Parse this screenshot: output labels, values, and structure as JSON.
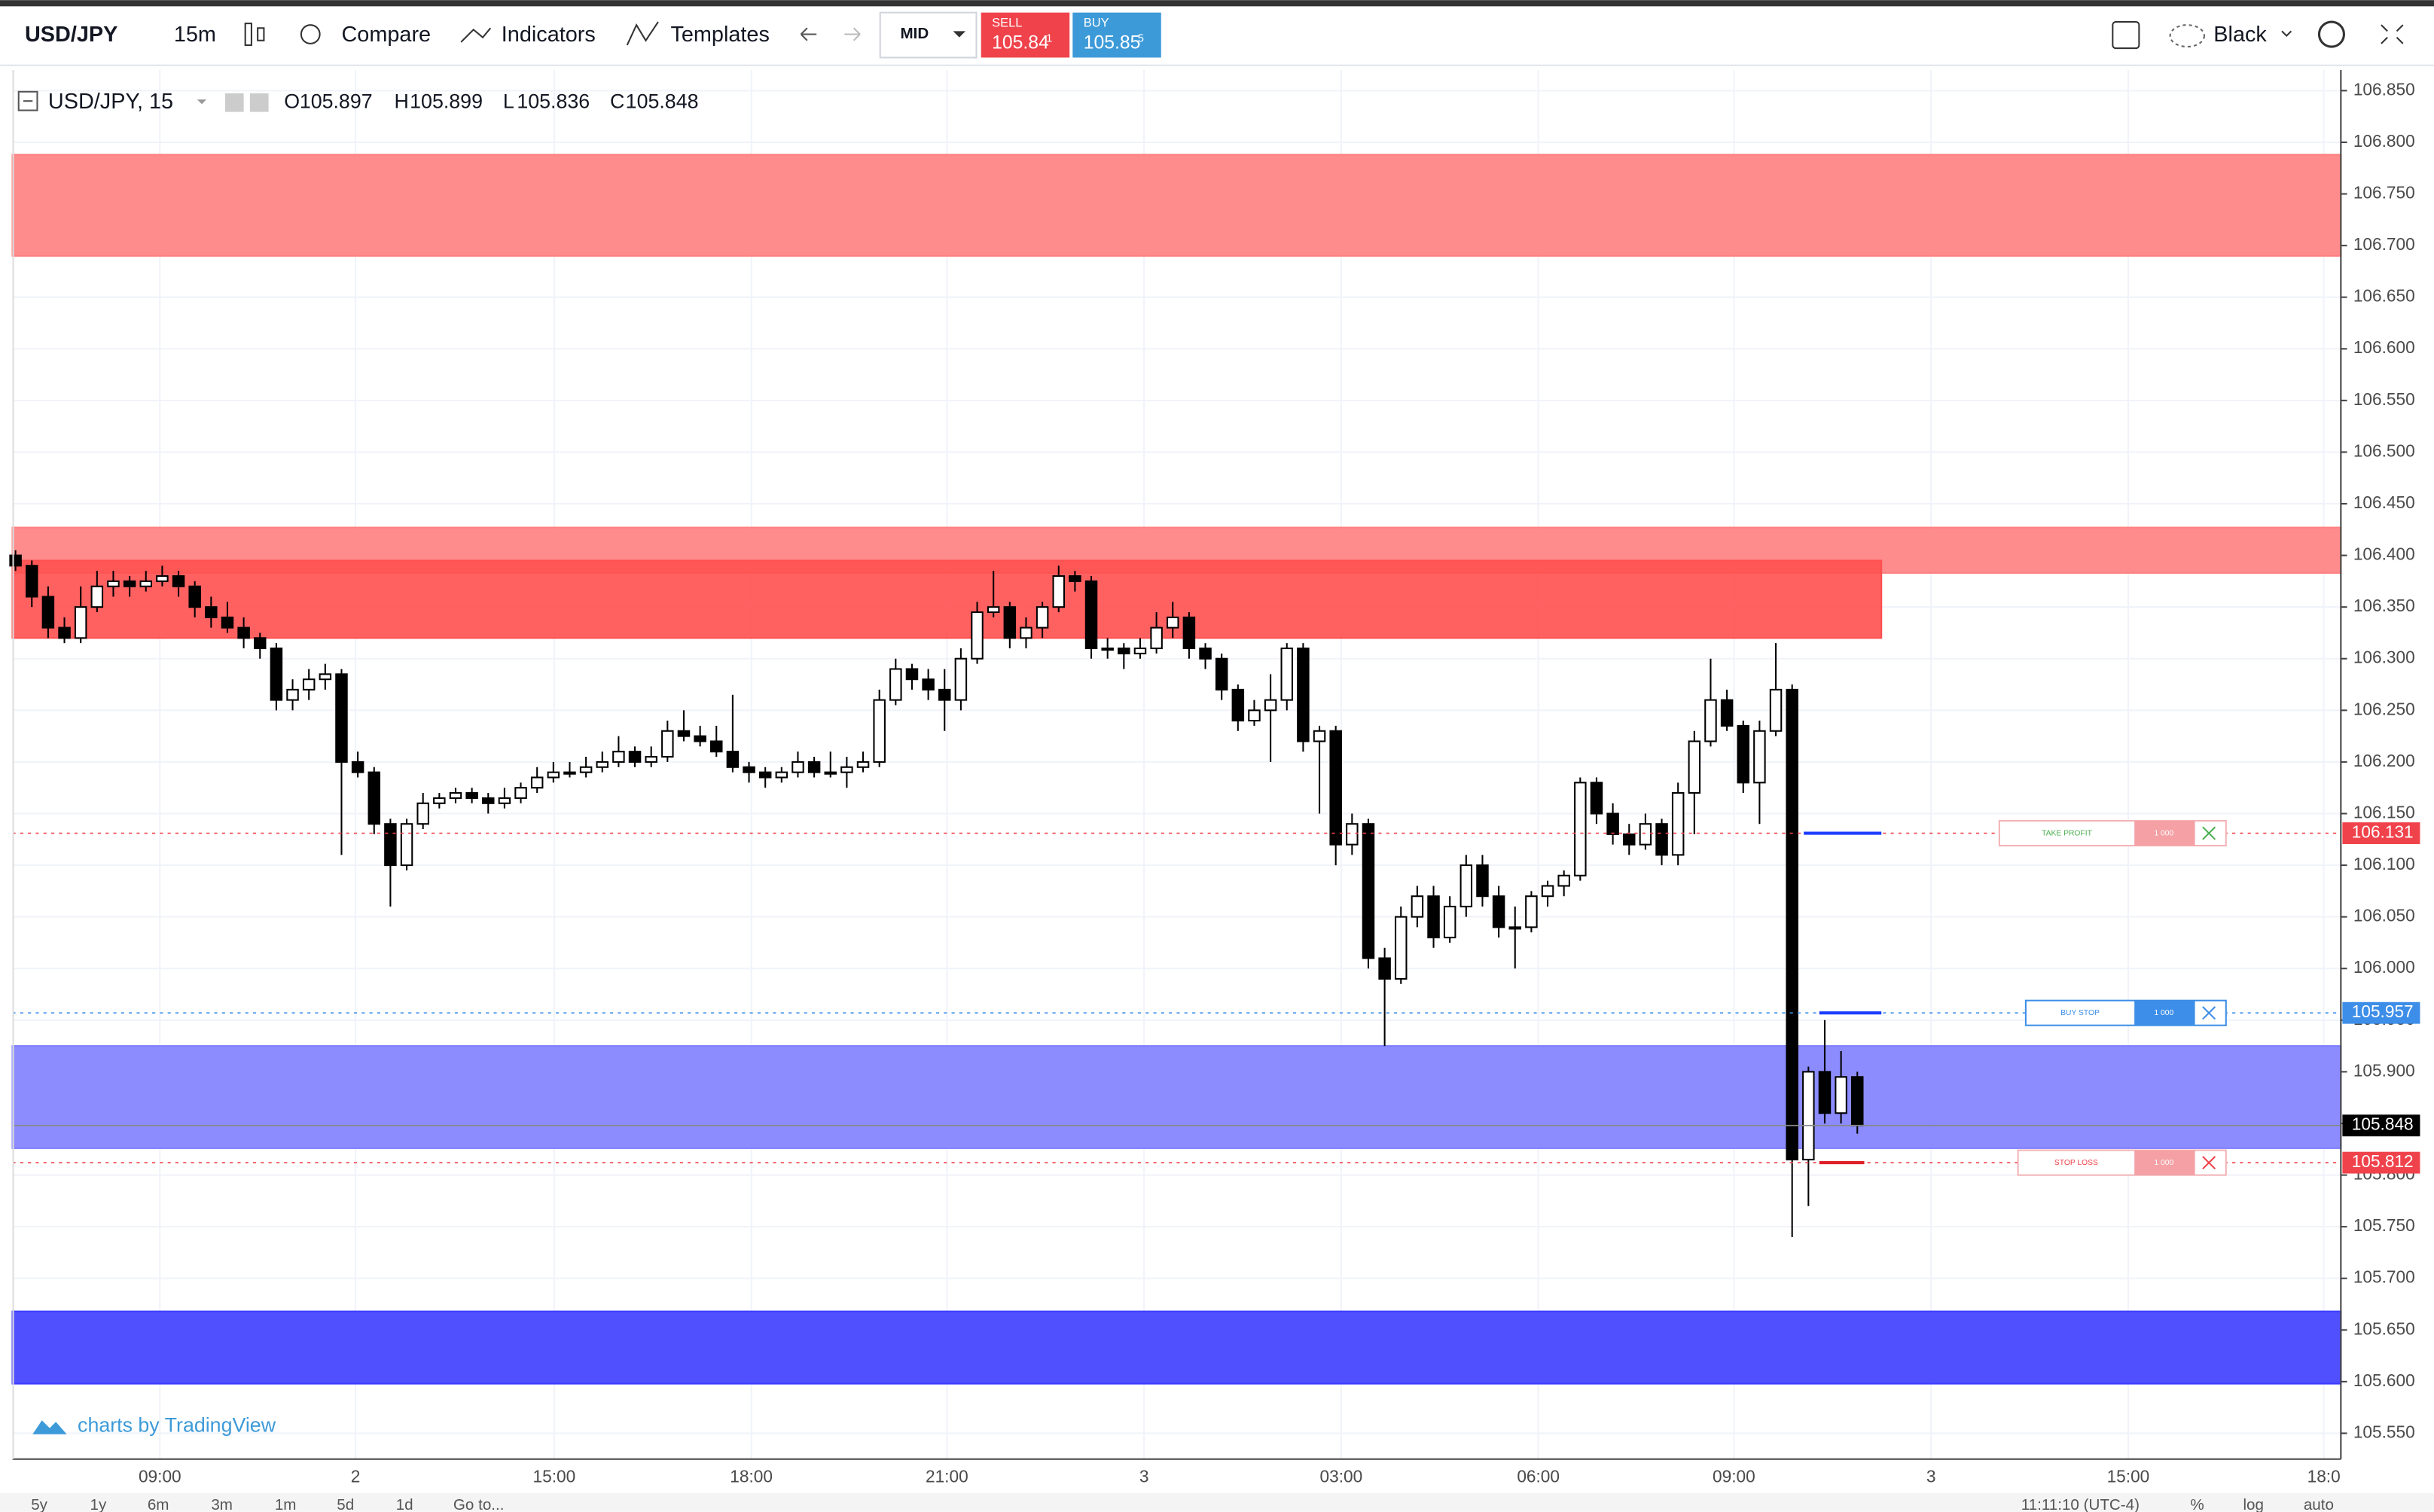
{
  "toolbar": {
    "symbol": "USD/JPY",
    "interval": "15m",
    "compare": "Compare",
    "indicators": "Indicators",
    "templates": "Templates",
    "mid": "MID",
    "sell": "SELL",
    "sell_price": "105.84",
    "sell_pip": "1",
    "buy": "BUY",
    "buy_price": "105.85",
    "buy_pip": "5",
    "theme": "Black"
  },
  "legend": {
    "title": "USD/JPY, 15",
    "o_label": "O",
    "o": "105.897",
    "h_label": "H",
    "h": "105.899",
    "l_label": "L",
    "l": "105.836",
    "c_label": "C",
    "c": "105.848"
  },
  "watermark": "charts by TradingView",
  "orders": [
    {
      "label": "TAKE PROFIT",
      "qty": "1 000"
    },
    {
      "label": "BUY STOP",
      "qty": "1 000"
    },
    {
      "label": "STOP LOSS",
      "qty": "1 000"
    }
  ],
  "bottom_bar": {
    "ranges": [
      "5y",
      "1y",
      "6m",
      "3m",
      "1m",
      "5d",
      "1d"
    ],
    "goto": "Go to...",
    "clock": "11:11:10 (UTC-4)",
    "percent": "%",
    "log": "log",
    "auto": "auto"
  },
  "chart_data": {
    "type": "candlestick",
    "xlabels": [
      "09:00",
      "2",
      "15:00",
      "18:00",
      "21:00",
      "3",
      "03:00",
      "06:00",
      "09:00",
      "3",
      "15:00",
      "18:0"
    ],
    "ylim": [
      105.525,
      106.87
    ],
    "yticks": [
      {
        "value": 105.55,
        "label": "105.550"
      },
      {
        "value": 105.6,
        "label": "105.600"
      },
      {
        "value": 105.65,
        "label": "105.650"
      },
      {
        "value": 105.7,
        "label": "105.700"
      },
      {
        "value": 105.75,
        "label": "105.750"
      },
      {
        "value": 105.8,
        "label": "105.800"
      },
      {
        "value": 105.85,
        "label": "105.850"
      },
      {
        "value": 105.9,
        "label": "105.900"
      },
      {
        "value": 105.95,
        "label": "105.950"
      },
      {
        "value": 106,
        "label": "106.000"
      },
      {
        "value": 106.05,
        "label": "106.050"
      },
      {
        "value": 106.1,
        "label": "106.100"
      },
      {
        "value": 106.15,
        "label": "106.150"
      },
      {
        "value": 106.2,
        "label": "106.200"
      },
      {
        "value": 106.25,
        "label": "106.250"
      },
      {
        "value": 106.3,
        "label": "106.300"
      },
      {
        "value": 106.35,
        "label": "106.350"
      },
      {
        "value": 106.4,
        "label": "106.400"
      },
      {
        "value": 106.45,
        "label": "106.450"
      },
      {
        "value": 106.5,
        "label": "106.500"
      },
      {
        "value": 106.55,
        "label": "106.550"
      },
      {
        "value": 106.6,
        "label": "106.600"
      },
      {
        "value": 106.65,
        "label": "106.650"
      },
      {
        "value": 106.7,
        "label": "106.700"
      },
      {
        "value": 106.75,
        "label": "106.750"
      },
      {
        "value": 106.8,
        "label": "106.800"
      },
      {
        "value": 106.85,
        "label": "106.850"
      }
    ],
    "grid": true,
    "up_color": "#ffffff",
    "down_color": "#000000",
    "zones": [
      {
        "top": 106.788,
        "bottom": 106.69,
        "color": "#ff7f7f",
        "full": true
      },
      {
        "top": 106.427,
        "bottom": 106.383,
        "color": "#ff7f7f",
        "full": true
      },
      {
        "top": 106.395,
        "bottom": 106.32,
        "color": "#ff5050",
        "full": false
      },
      {
        "top": 105.925,
        "bottom": 105.826,
        "color": "#7f7fff",
        "full": true
      },
      {
        "top": 105.668,
        "bottom": 105.598,
        "color": "#3d3dff",
        "full": true
      }
    ],
    "price_tags": [
      {
        "value": 106.131,
        "color": "#f0424b"
      },
      {
        "value": 105.957,
        "color": "#3d8ee8"
      },
      {
        "value": 105.848,
        "color": "#000000"
      },
      {
        "value": 105.812,
        "color": "#f0424b"
      }
    ],
    "candles": [
      [
        106.4,
        106.405,
        106.385,
        106.39
      ],
      [
        106.39,
        106.395,
        106.35,
        106.36
      ],
      [
        106.36,
        106.37,
        106.32,
        106.33
      ],
      [
        106.33,
        106.34,
        106.315,
        106.32
      ],
      [
        106.32,
        106.37,
        106.315,
        106.35
      ],
      [
        106.35,
        106.385,
        106.345,
        106.37
      ],
      [
        106.37,
        106.385,
        106.36,
        106.375
      ],
      [
        106.375,
        106.38,
        106.36,
        106.37
      ],
      [
        106.37,
        106.385,
        106.365,
        106.375
      ],
      [
        106.375,
        106.39,
        106.37,
        106.38
      ],
      [
        106.38,
        106.385,
        106.36,
        106.37
      ],
      [
        106.37,
        106.375,
        106.34,
        106.35
      ],
      [
        106.35,
        106.36,
        106.33,
        106.34
      ],
      [
        106.34,
        106.355,
        106.325,
        106.33
      ],
      [
        106.33,
        106.34,
        106.31,
        106.32
      ],
      [
        106.32,
        106.325,
        106.3,
        106.31
      ],
      [
        106.31,
        106.315,
        106.25,
        106.26
      ],
      [
        106.26,
        106.28,
        106.25,
        106.27
      ],
      [
        106.27,
        106.29,
        106.26,
        106.28
      ],
      [
        106.28,
        106.295,
        106.27,
        106.285
      ],
      [
        106.285,
        106.29,
        106.11,
        106.2
      ],
      [
        106.2,
        106.21,
        106.185,
        106.19
      ],
      [
        106.19,
        106.195,
        106.13,
        106.14
      ],
      [
        106.14,
        106.145,
        106.06,
        106.1
      ],
      [
        106.1,
        106.145,
        106.095,
        106.14
      ],
      [
        106.14,
        106.17,
        106.135,
        106.16
      ],
      [
        106.16,
        106.17,
        106.155,
        106.165
      ],
      [
        106.165,
        106.175,
        106.16,
        106.17
      ],
      [
        106.17,
        106.175,
        106.16,
        106.165
      ],
      [
        106.165,
        106.17,
        106.15,
        106.16
      ],
      [
        106.16,
        106.175,
        106.155,
        106.165
      ],
      [
        106.165,
        106.18,
        106.16,
        106.175
      ],
      [
        106.175,
        106.195,
        106.17,
        106.185
      ],
      [
        106.185,
        106.2,
        106.18,
        106.19
      ],
      [
        106.19,
        106.2,
        106.185,
        106.19
      ],
      [
        106.19,
        106.205,
        106.185,
        106.195
      ],
      [
        106.195,
        106.21,
        106.19,
        106.2
      ],
      [
        106.2,
        106.225,
        106.195,
        106.21
      ],
      [
        106.21,
        106.215,
        106.195,
        106.2
      ],
      [
        106.2,
        106.215,
        106.195,
        106.205
      ],
      [
        106.205,
        106.24,
        106.2,
        106.23
      ],
      [
        106.23,
        106.25,
        106.22,
        106.225
      ],
      [
        106.225,
        106.235,
        106.215,
        106.22
      ],
      [
        106.22,
        106.235,
        106.205,
        106.21
      ],
      [
        106.21,
        106.265,
        106.19,
        106.195
      ],
      [
        106.195,
        106.2,
        106.18,
        106.19
      ],
      [
        106.19,
        106.195,
        106.175,
        106.185
      ],
      [
        106.185,
        106.195,
        106.18,
        106.19
      ],
      [
        106.19,
        106.21,
        106.185,
        106.2
      ],
      [
        106.2,
        106.205,
        106.185,
        106.19
      ],
      [
        106.19,
        106.21,
        106.185,
        106.19
      ],
      [
        106.19,
        106.205,
        106.175,
        106.195
      ],
      [
        106.195,
        106.21,
        106.19,
        106.2
      ],
      [
        106.2,
        106.27,
        106.195,
        106.26
      ],
      [
        106.26,
        106.3,
        106.255,
        106.29
      ],
      [
        106.29,
        106.295,
        106.27,
        106.28
      ],
      [
        106.28,
        106.29,
        106.26,
        106.27
      ],
      [
        106.27,
        106.29,
        106.23,
        106.26
      ],
      [
        106.26,
        106.31,
        106.25,
        106.3
      ],
      [
        106.3,
        106.355,
        106.295,
        106.345
      ],
      [
        106.345,
        106.385,
        106.34,
        106.35
      ],
      [
        106.35,
        106.355,
        106.31,
        106.32
      ],
      [
        106.32,
        106.34,
        106.31,
        106.33
      ],
      [
        106.33,
        106.355,
        106.32,
        106.35
      ],
      [
        106.35,
        106.39,
        106.345,
        106.38
      ],
      [
        106.38,
        106.385,
        106.365,
        106.375
      ],
      [
        106.375,
        106.38,
        106.3,
        106.31
      ],
      [
        106.31,
        106.32,
        106.3,
        106.31
      ],
      [
        106.31,
        106.315,
        106.29,
        106.305
      ],
      [
        106.305,
        106.32,
        106.3,
        106.31
      ],
      [
        106.31,
        106.345,
        106.305,
        106.33
      ],
      [
        106.33,
        106.355,
        106.32,
        106.34
      ],
      [
        106.34,
        106.345,
        106.3,
        106.31
      ],
      [
        106.31,
        106.315,
        106.29,
        106.3
      ],
      [
        106.3,
        106.305,
        106.26,
        106.27
      ],
      [
        106.27,
        106.275,
        106.23,
        106.24
      ],
      [
        106.24,
        106.26,
        106.235,
        106.25
      ],
      [
        106.25,
        106.285,
        106.2,
        106.26
      ],
      [
        106.26,
        106.315,
        106.25,
        106.31
      ],
      [
        106.31,
        106.315,
        106.21,
        106.22
      ],
      [
        106.22,
        106.235,
        106.15,
        106.23
      ],
      [
        106.23,
        106.235,
        106.1,
        106.12
      ],
      [
        106.12,
        106.15,
        106.11,
        106.14
      ],
      [
        106.14,
        106.145,
        106.0,
        106.01
      ],
      [
        106.01,
        106.02,
        105.925,
        105.99
      ],
      [
        105.99,
        106.06,
        105.985,
        106.05
      ],
      [
        106.05,
        106.08,
        106.04,
        106.07
      ],
      [
        106.07,
        106.08,
        106.02,
        106.03
      ],
      [
        106.03,
        106.07,
        106.025,
        106.06
      ],
      [
        106.06,
        106.11,
        106.05,
        106.1
      ],
      [
        106.1,
        106.11,
        106.06,
        106.07
      ],
      [
        106.07,
        106.08,
        106.03,
        106.04
      ],
      [
        106.04,
        106.06,
        106.0,
        106.04
      ],
      [
        106.04,
        106.075,
        106.035,
        106.07
      ],
      [
        106.07,
        106.085,
        106.06,
        106.08
      ],
      [
        106.08,
        106.095,
        106.07,
        106.09
      ],
      [
        106.09,
        106.185,
        106.085,
        106.18
      ],
      [
        106.18,
        106.185,
        106.14,
        106.15
      ],
      [
        106.15,
        106.16,
        106.12,
        106.13
      ],
      [
        106.13,
        106.14,
        106.11,
        106.12
      ],
      [
        106.12,
        106.15,
        106.115,
        106.14
      ],
      [
        106.14,
        106.145,
        106.1,
        106.11
      ],
      [
        106.11,
        106.18,
        106.1,
        106.17
      ],
      [
        106.17,
        106.23,
        106.13,
        106.22
      ],
      [
        106.22,
        106.3,
        106.215,
        106.26
      ],
      [
        106.26,
        106.27,
        106.23,
        106.235
      ],
      [
        106.235,
        106.24,
        106.17,
        106.18
      ],
      [
        106.18,
        106.24,
        106.14,
        106.23
      ],
      [
        106.23,
        106.315,
        106.225,
        106.27
      ],
      [
        106.27,
        106.275,
        105.74,
        105.815
      ],
      [
        105.815,
        105.905,
        105.77,
        105.9
      ],
      [
        105.9,
        105.95,
        105.85,
        105.86
      ],
      [
        105.86,
        105.92,
        105.85,
        105.895
      ],
      [
        105.895,
        105.9,
        105.84,
        105.848
      ]
    ]
  }
}
